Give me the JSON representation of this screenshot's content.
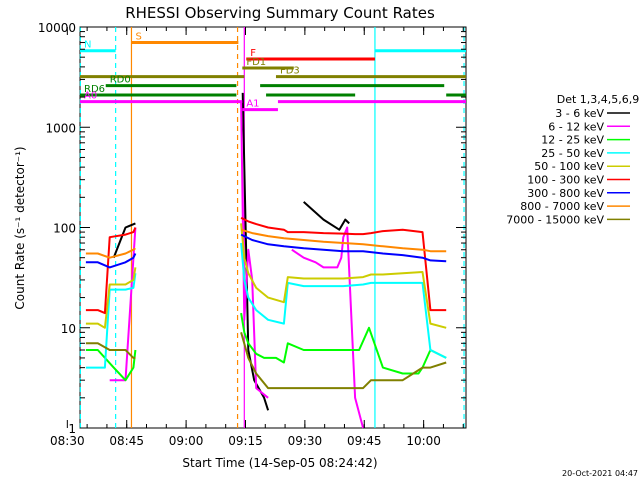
{
  "chart_data": {
    "type": "line",
    "title": "RHESSI Observing Summary Count Rates",
    "xlabel": "Start Time (14-Sep-05 08:24:42)",
    "ylabel": "Count Rate (s⁻¹ detector⁻¹)",
    "yscale": "log",
    "ylim": [
      1,
      10000
    ],
    "xlim_minutes": [
      8.5,
      106.0
    ],
    "x_tick_labels": [
      "08:30",
      "08:45",
      "09:00",
      "09:15",
      "09:30",
      "09:45",
      "10:00"
    ],
    "x_tick_minutes": [
      5.3,
      20.3,
      35.3,
      50.3,
      65.3,
      80.3,
      95.3
    ],
    "y_tick_labels": [
      "1",
      "10",
      "100",
      "1000",
      "10000"
    ],
    "y_tick_values": [
      1,
      10,
      100,
      1000,
      10000
    ],
    "legend_title": "Det 1,3,4,5,6,9",
    "legend_position": "right",
    "series": [
      {
        "name": "3 - 6 keV",
        "color": "#000000",
        "x": [
          9,
          17,
          20,
          22.5,
          36,
          48.5,
          49.6,
          51,
          52.5,
          55,
          56,
          58,
          65,
          70,
          74,
          75.5,
          76.5,
          77.5
        ],
        "y": [
          null,
          50,
          100,
          110,
          null,
          null,
          2200,
          6,
          3,
          2,
          1.5,
          null,
          180,
          120,
          95,
          120,
          110,
          null
        ]
      },
      {
        "name": "6 - 12 keV",
        "color": "#ff00ff",
        "x": [
          9,
          16,
          20,
          22.5,
          36,
          48.5,
          49.2,
          50,
          51,
          52,
          53,
          56,
          58,
          62,
          65,
          68,
          70,
          73.5,
          74.5,
          75,
          76,
          78,
          80,
          81.5,
          83
        ],
        "y": [
          null,
          3,
          3,
          100,
          null,
          null,
          1800,
          12,
          60,
          30,
          2.5,
          2,
          null,
          60,
          50,
          45,
          40,
          40,
          50,
          80,
          100,
          2,
          1,
          null,
          null
        ]
      },
      {
        "name": "12 - 25 keV",
        "color": "#00ff00",
        "x": [
          7,
          10,
          13,
          17,
          20,
          22,
          22.5,
          36,
          48.5,
          49.2,
          50,
          51,
          53,
          55,
          58,
          60,
          61,
          65,
          70,
          74,
          77,
          79,
          81.5,
          85,
          90,
          94,
          95,
          97,
          101
        ],
        "y": [
          null,
          6,
          6,
          4,
          3,
          4,
          6,
          null,
          null,
          14,
          9,
          7,
          5.5,
          5,
          5,
          4.5,
          7,
          6,
          6,
          6,
          6,
          6,
          10,
          4,
          3.5,
          3.5,
          4,
          6,
          5
        ]
      },
      {
        "name": "25 - 50 keV",
        "color": "#00ffff",
        "x": [
          7,
          10,
          13,
          14.8,
          16,
          20,
          22,
          22.5,
          36,
          48.5,
          49.2,
          50,
          51,
          53,
          56,
          60,
          61,
          65,
          70,
          75,
          80,
          82,
          85,
          90,
          95,
          97,
          101
        ],
        "y": [
          null,
          4,
          4,
          4,
          24,
          24,
          25,
          35,
          null,
          null,
          70,
          30,
          20,
          15,
          12,
          11,
          28,
          26,
          26,
          26,
          27,
          28,
          28,
          28,
          28,
          6,
          5
        ]
      },
      {
        "name": "50 - 100 keV",
        "color": "#cccc00",
        "x": [
          7,
          10,
          13,
          14.8,
          16,
          20,
          22,
          22.5,
          36,
          48.5,
          49.2,
          50,
          51,
          53,
          56,
          60,
          61,
          65,
          70,
          75,
          80,
          82,
          85,
          90,
          95,
          97,
          101
        ],
        "y": [
          null,
          11,
          11,
          10,
          27,
          27,
          30,
          40,
          null,
          null,
          110,
          50,
          35,
          25,
          20,
          18,
          32,
          31,
          31,
          31,
          32,
          34,
          34,
          35,
          36,
          11,
          10
        ]
      },
      {
        "name": "100 - 300 keV",
        "color": "#ff0000",
        "x": [
          7,
          10,
          13,
          14.8,
          16,
          20,
          22,
          22.5,
          36,
          48.5,
          49.2,
          51,
          53,
          56,
          60,
          61,
          65,
          70,
          75,
          78,
          80,
          82,
          85,
          90,
          95,
          97,
          101
        ],
        "y": [
          null,
          15,
          15,
          14,
          80,
          85,
          90,
          100,
          null,
          null,
          125,
          115,
          108,
          100,
          95,
          90,
          90,
          88,
          87,
          86,
          86,
          88,
          92,
          95,
          90,
          15,
          15
        ]
      },
      {
        "name": "300 - 800 keV",
        "color": "#0000ff",
        "x": [
          7,
          10,
          13,
          16,
          20,
          22,
          22.5,
          36,
          48.5,
          49.2,
          52,
          56,
          60,
          65,
          70,
          75,
          80,
          85,
          90,
          95,
          97,
          101
        ],
        "y": [
          null,
          45,
          45,
          40,
          45,
          50,
          55,
          null,
          null,
          85,
          75,
          68,
          65,
          62,
          60,
          58,
          58,
          55,
          53,
          50,
          47,
          46
        ]
      },
      {
        "name": "800 - 7000 keV",
        "color": "#ff8800",
        "x": [
          7,
          10,
          13,
          16,
          20,
          22,
          22.5,
          36,
          48.5,
          49.2,
          52,
          56,
          60,
          65,
          70,
          75,
          80,
          85,
          90,
          95,
          97,
          101
        ],
        "y": [
          null,
          55,
          55,
          50,
          55,
          60,
          62,
          null,
          null,
          95,
          88,
          82,
          78,
          75,
          72,
          70,
          68,
          65,
          62,
          60,
          58,
          58
        ]
      },
      {
        "name": "7000 - 15000 keV",
        "color": "#808000",
        "x": [
          7,
          10,
          13,
          16,
          20,
          22,
          22.5,
          36,
          48.5,
          49.2,
          51,
          53,
          56,
          60,
          61,
          65,
          70,
          75,
          80,
          82,
          85,
          90,
          95,
          97,
          101
        ],
        "y": [
          null,
          7,
          7,
          6,
          6,
          5,
          5,
          null,
          null,
          9,
          5,
          3.5,
          2.5,
          2.5,
          2.5,
          2.5,
          2.5,
          2.5,
          2.5,
          3,
          3,
          3,
          4,
          4,
          4.5
        ]
      }
    ],
    "flag_bars": [
      {
        "label": "S",
        "color": "#ff8800",
        "x": [
          21.5,
          48.5
        ],
        "y": 7000
      },
      {
        "label": "N",
        "color": "#00ffff",
        "x": [
          8.5,
          17.5
        ],
        "y": 5800
      },
      {
        "label": "",
        "color": "#00ffff",
        "x": [
          83.0,
          106.0
        ],
        "y": 5800
      },
      {
        "label": "F",
        "color": "#ff0000",
        "x": [
          50.5,
          83.0
        ],
        "y": 4800
      },
      {
        "label": "FD1",
        "color": "#808000",
        "x": [
          49.5,
          62.5
        ],
        "y": 3900
      },
      {
        "label": "",
        "color": "#808000",
        "x": [
          8.5,
          50.0
        ],
        "y": 3200
      },
      {
        "label": "FD3",
        "color": "#808000",
        "x": [
          58.0,
          106.0
        ],
        "y": 3200
      },
      {
        "label": "RD0",
        "color": "#008000",
        "x": [
          15.0,
          48.0
        ],
        "y": 2600
      },
      {
        "label": "",
        "color": "#008000",
        "x": [
          54.0,
          100.5
        ],
        "y": 2600
      },
      {
        "label": "RD6",
        "color": "#008000",
        "x": [
          8.5,
          48.0
        ],
        "y": 2100
      },
      {
        "label": "",
        "color": "#008000",
        "x": [
          55.5,
          78.0
        ],
        "y": 2100
      },
      {
        "label": "",
        "color": "#008000",
        "x": [
          101.0,
          106.0
        ],
        "y": 2100
      },
      {
        "label": "A0",
        "color": "#ff00ff",
        "x": [
          8.5,
          49.5
        ],
        "y": 1800
      },
      {
        "label": "",
        "color": "#ff00ff",
        "x": [
          58.5,
          106.0
        ],
        "y": 1800
      },
      {
        "label": "A1",
        "color": "#ff00ff",
        "x": [
          49.5,
          58.5
        ],
        "y": 1500
      }
    ],
    "vertical_lines": [
      {
        "x": 8.6,
        "color": "#00ffff",
        "style": "dashed"
      },
      {
        "x": 17.5,
        "color": "#00ffff",
        "style": "dashed"
      },
      {
        "x": 21.5,
        "color": "#ff8800",
        "style": "solid"
      },
      {
        "x": 48.3,
        "color": "#ff8800",
        "style": "dashed"
      },
      {
        "x": 50.0,
        "color": "#ff00ff",
        "style": "solid"
      },
      {
        "x": 83.0,
        "color": "#00ffff",
        "style": "solid"
      },
      {
        "x": 105.5,
        "color": "#00ffff",
        "style": "dashed"
      }
    ],
    "grid": false
  },
  "footer": {
    "date": "20-Oct-2021 04:47"
  }
}
